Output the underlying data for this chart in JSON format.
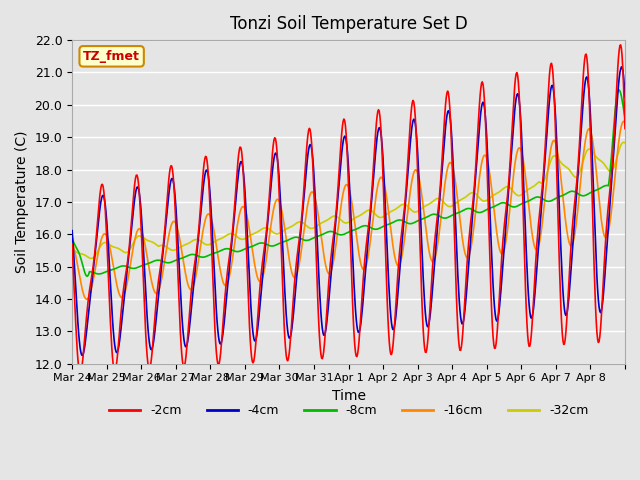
{
  "title": "Tonzi Soil Temperature Set D",
  "xlabel": "Time",
  "ylabel": "Soil Temperature (C)",
  "ylim": [
    12.0,
    22.0
  ],
  "yticks": [
    12.0,
    13.0,
    14.0,
    15.0,
    16.0,
    17.0,
    18.0,
    19.0,
    20.0,
    21.0,
    22.0
  ],
  "bg_color": "#e5e5e5",
  "plot_bg_color": "#e5e5e5",
  "annotation_text": "TZ_fmet",
  "annotation_color": "#cc0000",
  "annotation_bg": "#ffffcc",
  "annotation_border": "#cc8800",
  "series": {
    "-2cm": {
      "color": "#ff0000",
      "lw": 1.2
    },
    "-4cm": {
      "color": "#0000cc",
      "lw": 1.2
    },
    "-8cm": {
      "color": "#00bb00",
      "lw": 1.2
    },
    "-16cm": {
      "color": "#ff8800",
      "lw": 1.2
    },
    "-32cm": {
      "color": "#cccc00",
      "lw": 1.2
    }
  },
  "xtick_labels": [
    "Mar 24",
    "Mar 25",
    "Mar 26",
    "Mar 27",
    "Mar 28",
    "Mar 29",
    "Mar 30",
    "Mar 31",
    "Apr 1",
    "Apr 2",
    "Apr 3",
    "Apr 4",
    "Apr 5",
    "Apr 6",
    "Apr 7",
    "Apr 8"
  ],
  "n_days": 16,
  "points_per_day": 48
}
